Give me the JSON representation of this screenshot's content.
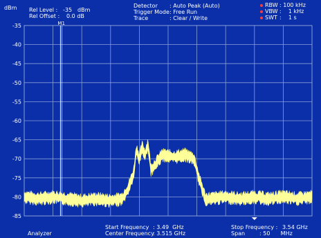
{
  "header": {
    "unit": "dBm",
    "ref_level_label": "Rel Level :",
    "ref_level_value": "-35",
    "ref_level_unit": "dBm",
    "ref_offset_label": "Rel Offset :",
    "ref_offset_value": "0.0 dB",
    "detector_label": "Detector",
    "detector_value": ": Auto Peak (Auto)",
    "trigger_label": "Trigger Mode",
    "trigger_value": ": Free Run",
    "trace_label": "Trace",
    "trace_value": ": Clear / Write",
    "rbw_label": "RBW",
    "rbw_value": ": 100 kHz",
    "vbw_label": "VBW",
    "vbw_value": ":    1 kHz",
    "swt_label": "SWT",
    "swt_value": ":    1 s"
  },
  "footer": {
    "mode": "Analyzer",
    "start_label": "Start Frequency",
    "start_value": ": 3.49  GHz",
    "center_label": "Center Frequency",
    "center_value": ": 3.515 GHz",
    "stop_label": "Stop Frequency :",
    "stop_value": "3.54 GHz",
    "span_label": "Span",
    "span_value": ": 50      MHz"
  },
  "marker": {
    "label": "M1"
  },
  "colors": {
    "background": "#0a2fa8",
    "plot_background": "#0a2fa8",
    "grid": "#8a9fd8",
    "trace": "#ffff99",
    "marker": "#ffffff",
    "indicator": "#ff3b3b"
  },
  "chart_data": {
    "type": "line",
    "xlabel": "",
    "ylabel": "dBm",
    "x_unit": "GHz",
    "xlim": [
      3.49,
      3.54
    ],
    "ylim": [
      -85,
      -35
    ],
    "yticks": [
      -35,
      -40,
      -45,
      -50,
      -55,
      -60,
      -65,
      -70,
      -75,
      -80,
      -85
    ],
    "grid": true,
    "marker_x": 3.4963,
    "series": [
      {
        "x": [
          3.49,
          3.4925,
          3.495,
          3.4975,
          3.5,
          3.5025,
          3.505,
          3.507,
          3.508,
          3.509,
          3.5095,
          3.51,
          3.5105,
          3.511,
          3.5115,
          3.512,
          3.513,
          3.514,
          3.516,
          3.518,
          3.5195,
          3.5205,
          3.5215,
          3.5225,
          3.525,
          3.5275,
          3.53,
          3.5325,
          3.535,
          3.5375,
          3.54
        ],
        "values": [
          -80,
          -80.5,
          -80,
          -80.5,
          -81,
          -80.5,
          -81,
          -80.5,
          -78,
          -74,
          -67.5,
          -70,
          -67,
          -69,
          -66,
          -73,
          -71,
          -69,
          -69.5,
          -69,
          -70,
          -76,
          -80.5,
          -80.5,
          -80,
          -80.5,
          -80,
          -80.5,
          -80,
          -80.5,
          -80
        ]
      }
    ]
  }
}
